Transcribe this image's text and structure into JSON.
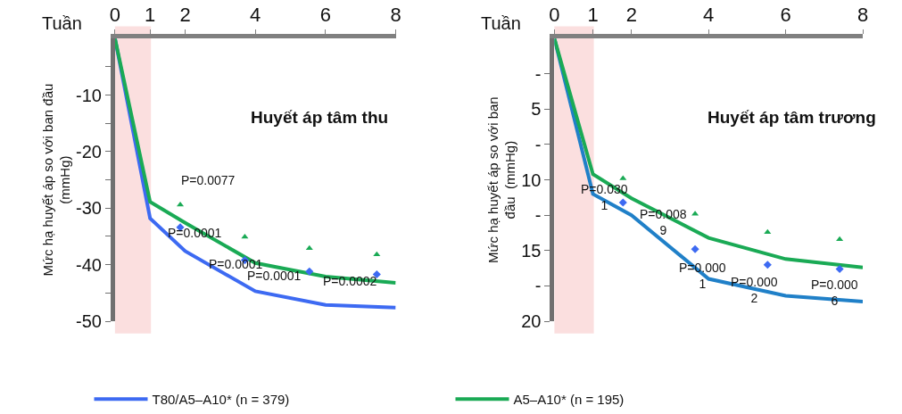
{
  "chart_data": [
    {
      "type": "line",
      "title": "Huyết áp tâm thu",
      "xlabel": "Tuần",
      "ylabel": "Mức hạ huyết áp so với ban đầu\n(mmHg)",
      "xlim": [
        0,
        8
      ],
      "xticks": [
        0,
        1,
        2,
        4,
        6,
        8
      ],
      "ylim": [
        -50,
        0
      ],
      "yticks": [
        {
          "value": -5,
          "label": null
        },
        -10,
        {
          "value": -15,
          "label": null
        },
        -20,
        {
          "value": -25,
          "label": null
        },
        -30,
        {
          "value": -35,
          "label": null
        },
        -40,
        {
          "value": -45,
          "label": null
        },
        -50
      ],
      "grid": false,
      "legend": "bottom",
      "series": [
        {
          "name": "T80/A5–A10* (n = 379)",
          "color": "#3d6af2",
          "x": [
            0,
            1,
            2,
            4,
            6,
            8
          ],
          "values": [
            0,
            -31.8,
            -37.6,
            -44.7,
            -47.1,
            -47.6
          ],
          "marker": "none",
          "line_style": "solid"
        },
        {
          "name": "A5–A10* (n = 195)",
          "color": "#1aaa55",
          "x": [
            0,
            1,
            2,
            4,
            6,
            8
          ],
          "values": [
            0,
            -28.9,
            -32.6,
            -39.7,
            -42.1,
            -43.2
          ],
          "marker": "none",
          "line_style": "solid"
        },
        {
          "type": "scatter",
          "color": "#3d6af2",
          "x": [
            1.86,
            3.7,
            5.54,
            7.46
          ],
          "values": [
            -33.4,
            -39.2,
            -41.2,
            -41.7
          ],
          "marker": "diamond"
        },
        {
          "type": "scatter",
          "color": "#1aaa55",
          "x": [
            1.86,
            3.7,
            5.54,
            7.46
          ],
          "values": [
            -29.4,
            -35.1,
            -37.1,
            -38.2
          ],
          "marker": "triangle"
        }
      ],
      "annotations": [
        "P=0.0077",
        "P=0.0001",
        "P=0.0001",
        "P=0.0001",
        "P=0.0002"
      ],
      "bands": [
        {
          "axis": "x",
          "from": 0,
          "to": 1,
          "color": "#f08080"
        }
      ]
    },
    {
      "type": "line",
      "title": "Huyết áp tâm trương",
      "xlabel": "Tuần",
      "ylabel": "Mức hạ huyết áp so với ban\nđầu  (mmHg)",
      "xlim": [
        0,
        8
      ],
      "xticks": [
        0,
        1,
        2,
        4,
        6,
        8
      ],
      "ylim": [
        20,
        0
      ],
      "yticks": [
        {
          "value": 2.5,
          "label": "-"
        },
        5,
        {
          "value": 7.5,
          "label": "-"
        },
        10,
        {
          "value": 12.5,
          "label": "-"
        },
        15,
        {
          "value": 17.5,
          "label": "-"
        },
        20
      ],
      "grid": false,
      "series": [
        {
          "color": "#2080c8",
          "x": [
            0,
            1,
            2,
            4,
            6,
            8
          ],
          "values": [
            0,
            11.0,
            12.5,
            17.0,
            18.2,
            18.6
          ],
          "marker": "none",
          "line_style": "solid"
        },
        {
          "color": "#1aaa55",
          "x": [
            0,
            1,
            2,
            4,
            6,
            8
          ],
          "values": [
            0,
            9.6,
            11.3,
            14.1,
            15.6,
            16.2
          ],
          "marker": "none",
          "line_style": "solid"
        },
        {
          "type": "scatter",
          "color": "#3d6af2",
          "x": [
            1.78,
            3.65,
            5.53,
            7.4
          ],
          "values": [
            11.6,
            14.9,
            16.0,
            16.3
          ],
          "marker": "diamond"
        },
        {
          "type": "scatter",
          "color": "#1aaa55",
          "x": [
            1.78,
            3.65,
            5.53,
            7.4
          ],
          "values": [
            9.9,
            12.4,
            13.7,
            14.2
          ],
          "marker": "triangle"
        }
      ],
      "annotations": [
        "P=0.030\n1",
        "P=0.008\n9",
        "P=0.000\n1",
        "P=0.000\n2",
        "P=0.000\n6"
      ],
      "bands": [
        {
          "axis": "x",
          "from": 0,
          "to": 1,
          "color": "#f08080"
        }
      ]
    }
  ]
}
